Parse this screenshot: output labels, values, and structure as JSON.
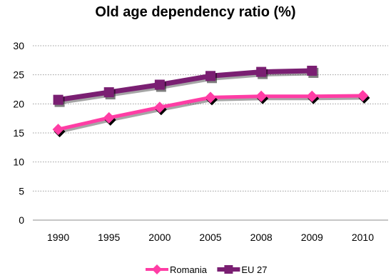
{
  "chart_data": {
    "type": "line",
    "title": "Old age dependency ratio (%)",
    "xlabel": "",
    "ylabel": "",
    "categories": [
      "1990",
      "1995",
      "2000",
      "2005",
      "2008",
      "2009",
      "2010"
    ],
    "ylim": [
      0,
      30
    ],
    "yticks": [
      0,
      5,
      10,
      15,
      20,
      25,
      30
    ],
    "grid": true,
    "legend_position": "bottom",
    "series": [
      {
        "name": "Romania",
        "color": "#ff3da5",
        "marker": "diamond",
        "values": [
          15.6,
          17.6,
          19.4,
          21.1,
          21.3,
          21.3,
          21.4
        ]
      },
      {
        "name": "EU 27",
        "color": "#7a1f72",
        "marker": "square",
        "values": [
          20.7,
          22.0,
          23.3,
          24.8,
          25.5,
          25.7,
          null
        ]
      }
    ]
  }
}
